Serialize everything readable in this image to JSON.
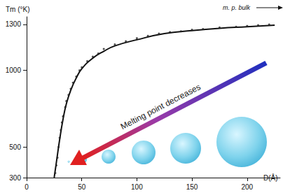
{
  "chart_data": {
    "type": "scatter",
    "x_label": "D(Å)",
    "y_label": "Tm (°K)",
    "annotations": [
      "m. p. bulk",
      "Melting point decreases"
    ],
    "xlim": [
      0,
      230
    ],
    "xticks": [
      0,
      50,
      100,
      150,
      200
    ],
    "ylim": [
      300,
      1350
    ],
    "yticks": [
      300,
      500,
      1000,
      1300
    ],
    "grid": false,
    "series": [
      {
        "type": "scatter",
        "color": "#222222",
        "marker": "circle",
        "x": [
          26,
          27,
          28,
          29,
          30,
          31,
          32,
          33,
          35,
          36,
          38,
          40,
          42,
          45,
          48,
          50,
          55,
          60,
          65,
          70,
          80,
          90,
          100,
          110,
          120,
          130,
          140,
          150,
          160,
          175,
          190,
          200,
          210,
          220
        ],
        "values": [
          330,
          380,
          430,
          500,
          560,
          610,
          660,
          700,
          760,
          800,
          840,
          880,
          920,
          960,
          1000,
          1020,
          1060,
          1090,
          1110,
          1140,
          1170,
          1190,
          1210,
          1225,
          1240,
          1250,
          1255,
          1265,
          1270,
          1280,
          1285,
          1290,
          1295,
          1300
        ]
      },
      {
        "type": "line",
        "color": "#111111",
        "line_style": "solid",
        "x": [
          25,
          27,
          30,
          33,
          36,
          40,
          45,
          50,
          60,
          70,
          80,
          100,
          125,
          150,
          175,
          200,
          225
        ],
        "values": [
          300,
          400,
          550,
          680,
          780,
          870,
          950,
          1010,
          1080,
          1125,
          1160,
          1200,
          1240,
          1260,
          1275,
          1285,
          1295
        ]
      }
    ]
  }
}
